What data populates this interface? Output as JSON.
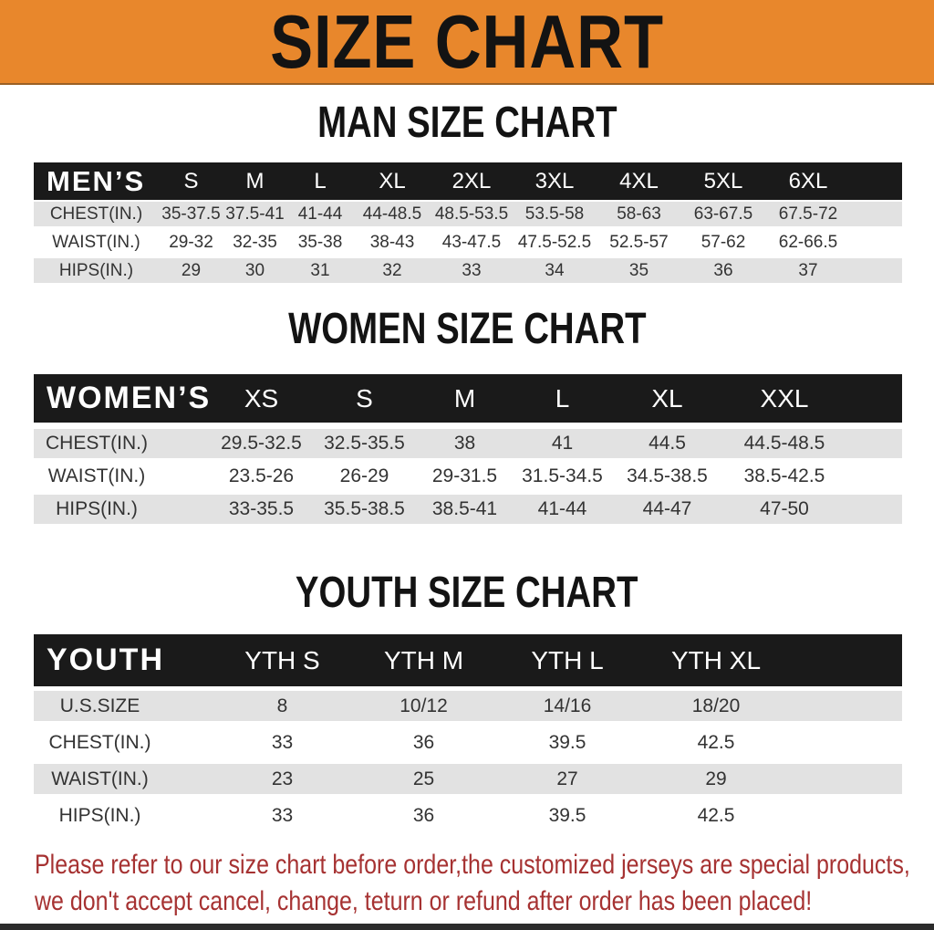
{
  "banner": {
    "title": "SIZE CHART"
  },
  "colors": {
    "banner_bg": "#E8872C",
    "header_bg": "#1A1A1A",
    "row_gray": "#E2E2E2",
    "footer_red": "#A63232"
  },
  "sections": [
    {
      "heading": "MAN SIZE CHART",
      "group_label": "MEN’S",
      "columns": [
        "S",
        "M",
        "L",
        "XL",
        "2XL",
        "3XL",
        "4XL",
        "5XL",
        "6XL"
      ],
      "rows": [
        {
          "label": "CHEST(IN.)",
          "values": [
            "35-37.5",
            "37.5-41",
            "41-44",
            "44-48.5",
            "48.5-53.5",
            "53.5-58",
            "58-63",
            "63-67.5",
            "67.5-72"
          ]
        },
        {
          "label": "WAIST(IN.)",
          "values": [
            "29-32",
            "32-35",
            "35-38",
            "38-43",
            "43-47.5",
            "47.5-52.5",
            "52.5-57",
            "57-62",
            "62-66.5"
          ]
        },
        {
          "label": "HIPS(IN.)",
          "values": [
            "29",
            "30",
            "31",
            "32",
            "33",
            "34",
            "35",
            "36",
            "37"
          ]
        }
      ]
    },
    {
      "heading": "WOMEN SIZE CHART",
      "group_label": "WOMEN’S",
      "columns": [
        "XS",
        "S",
        "M",
        "L",
        "XL",
        "XXL"
      ],
      "rows": [
        {
          "label": "CHEST(IN.)",
          "values": [
            "29.5-32.5",
            "32.5-35.5",
            "38",
            "41",
            "44.5",
            "44.5-48.5"
          ]
        },
        {
          "label": "WAIST(IN.)",
          "values": [
            "23.5-26",
            "26-29",
            "29-31.5",
            "31.5-34.5",
            "34.5-38.5",
            "38.5-42.5"
          ]
        },
        {
          "label": "HIPS(IN.)",
          "values": [
            "33-35.5",
            "35.5-38.5",
            "38.5-41",
            "41-44",
            "44-47",
            "47-50"
          ]
        }
      ]
    },
    {
      "heading": "YOUTH SIZE CHART",
      "group_label": "YOUTH",
      "columns": [
        "YTH S",
        "YTH M",
        "YTH L",
        "YTH XL"
      ],
      "rows": [
        {
          "label": "U.S.SIZE",
          "values": [
            "8",
            "10/12",
            "14/16",
            "18/20"
          ]
        },
        {
          "label": "CHEST(IN.)",
          "values": [
            "33",
            "36",
            "39.5",
            "42.5"
          ]
        },
        {
          "label": "WAIST(IN.)",
          "values": [
            "23",
            "25",
            "27",
            "29"
          ]
        },
        {
          "label": "HIPS(IN.)",
          "values": [
            "33",
            "36",
            "39.5",
            "42.5"
          ]
        }
      ]
    }
  ],
  "footer": {
    "line1": "Please refer to our size chart before order,the customized jerseys are special products,",
    "line2": "we don't accept cancel, change, teturn or refund after order has been placed!"
  }
}
